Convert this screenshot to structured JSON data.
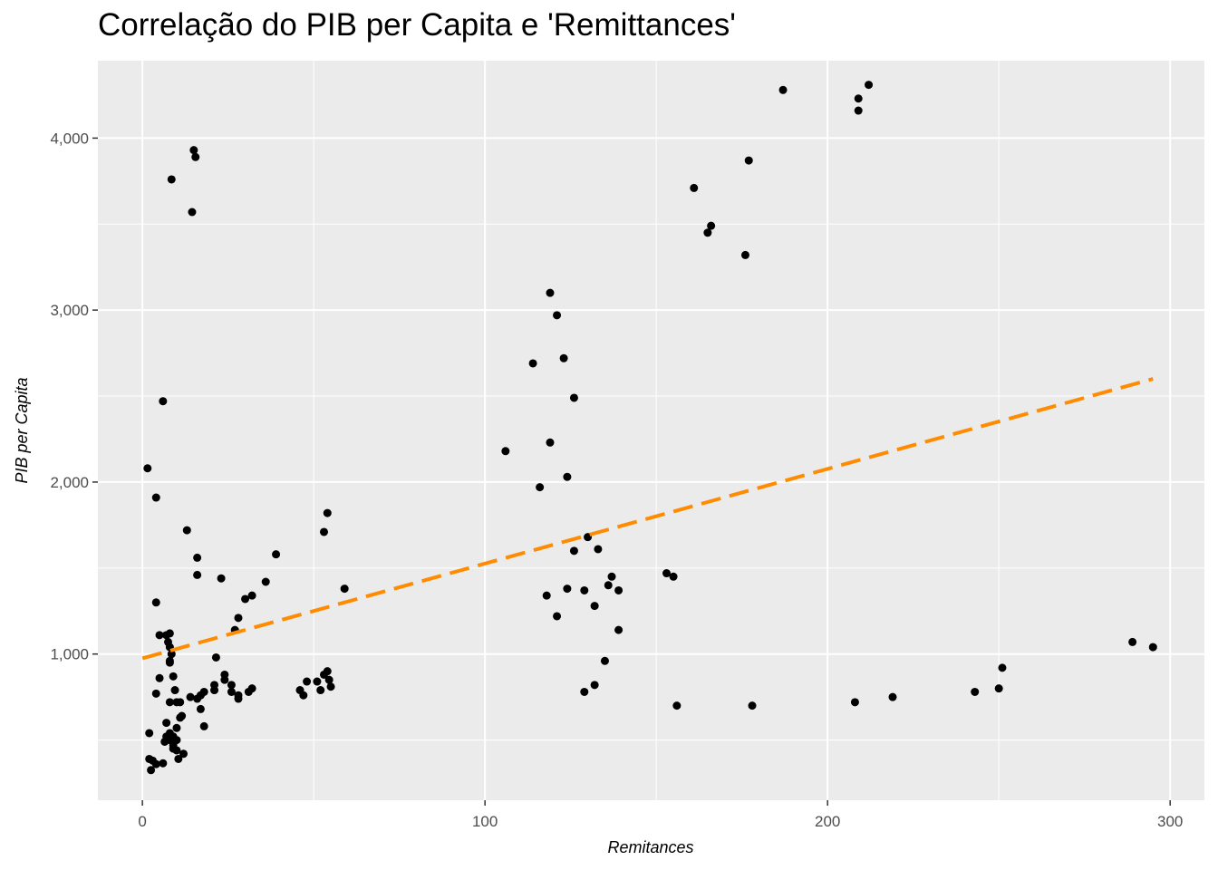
{
  "chart_data": {
    "type": "scatter",
    "title": "Correlação do PIB per Capita e 'Remittances'",
    "xlabel": "Remitances",
    "ylabel": "PIB per Capita",
    "xlim": [
      -13,
      310
    ],
    "ylim": [
      150,
      4450
    ],
    "x_ticks": [
      0,
      100,
      200,
      300
    ],
    "x_tick_labels": [
      "0",
      "100",
      "200",
      "300"
    ],
    "y_ticks": [
      1000,
      2000,
      3000,
      4000
    ],
    "y_tick_labels": [
      "1,000",
      "2,000",
      "3,000",
      "4,000"
    ],
    "grid": true,
    "legend": "none",
    "colors": {
      "panel": "#ebebeb",
      "grid": "#ffffff",
      "points": "#000000",
      "trend": "#ff8c00"
    },
    "trend_line": {
      "style": "dashed",
      "x": [
        0,
        295
      ],
      "y": [
        975,
        2600
      ]
    },
    "points": [
      [
        1.5,
        2080
      ],
      [
        4,
        1910
      ],
      [
        6,
        2470
      ],
      [
        13,
        1720
      ],
      [
        16,
        1560
      ],
      [
        16,
        1460
      ],
      [
        2,
        540
      ],
      [
        2,
        390
      ],
      [
        2.5,
        325
      ],
      [
        3,
        380
      ],
      [
        4,
        360
      ],
      [
        4,
        770
      ],
      [
        4,
        1300
      ],
      [
        5,
        860
      ],
      [
        5,
        1110
      ],
      [
        6,
        365
      ],
      [
        6.5,
        490
      ],
      [
        7,
        600
      ],
      [
        7,
        520
      ],
      [
        7,
        1110
      ],
      [
        7.5,
        1070
      ],
      [
        8,
        1120
      ],
      [
        8,
        1040
      ],
      [
        8,
        960
      ],
      [
        8,
        950
      ],
      [
        8,
        720
      ],
      [
        8,
        500
      ],
      [
        8,
        540
      ],
      [
        8.5,
        1000
      ],
      [
        9,
        870
      ],
      [
        9,
        470
      ],
      [
        9,
        450
      ],
      [
        9,
        520
      ],
      [
        9.5,
        790
      ],
      [
        10,
        720
      ],
      [
        10,
        570
      ],
      [
        10,
        500
      ],
      [
        10,
        440
      ],
      [
        10.5,
        390
      ],
      [
        11,
        630
      ],
      [
        11,
        720
      ],
      [
        11.5,
        640
      ],
      [
        12,
        420
      ],
      [
        8.5,
        3760
      ],
      [
        15,
        3930
      ],
      [
        15.5,
        3890
      ],
      [
        14.5,
        3570
      ],
      [
        14,
        750
      ],
      [
        16,
        740
      ],
      [
        17,
        680
      ],
      [
        17,
        760
      ],
      [
        18,
        580
      ],
      [
        18,
        780
      ],
      [
        21,
        820
      ],
      [
        21,
        790
      ],
      [
        21.5,
        980
      ],
      [
        23,
        1440
      ],
      [
        24,
        880
      ],
      [
        24,
        850
      ],
      [
        26,
        780
      ],
      [
        26,
        820
      ],
      [
        27,
        1140
      ],
      [
        28,
        1210
      ],
      [
        28,
        740
      ],
      [
        28,
        760
      ],
      [
        30,
        1320
      ],
      [
        31,
        780
      ],
      [
        32,
        800
      ],
      [
        32,
        1340
      ],
      [
        36,
        1420
      ],
      [
        39,
        1580
      ],
      [
        46,
        790
      ],
      [
        47,
        760
      ],
      [
        48,
        840
      ],
      [
        51,
        840
      ],
      [
        52,
        790
      ],
      [
        53,
        880
      ],
      [
        53,
        1710
      ],
      [
        54,
        900
      ],
      [
        54,
        1820
      ],
      [
        54.5,
        850
      ],
      [
        55,
        810
      ],
      [
        59,
        1380
      ],
      [
        106,
        2180
      ],
      [
        114,
        2690
      ],
      [
        116,
        1970
      ],
      [
        118,
        1340
      ],
      [
        119,
        2230
      ],
      [
        119,
        3100
      ],
      [
        121,
        2970
      ],
      [
        121,
        1220
      ],
      [
        123,
        2720
      ],
      [
        124,
        2030
      ],
      [
        124,
        1380
      ],
      [
        126,
        2490
      ],
      [
        126,
        1600
      ],
      [
        129,
        1370
      ],
      [
        129,
        780
      ],
      [
        130,
        1680
      ],
      [
        132,
        820
      ],
      [
        132,
        1280
      ],
      [
        133,
        1610
      ],
      [
        135,
        960
      ],
      [
        136,
        1400
      ],
      [
        137,
        1450
      ],
      [
        139,
        1140
      ],
      [
        139,
        1370
      ],
      [
        153,
        1470
      ],
      [
        155,
        1450
      ],
      [
        156,
        700
      ],
      [
        161,
        3710
      ],
      [
        165,
        3450
      ],
      [
        166,
        3490
      ],
      [
        176,
        3320
      ],
      [
        177,
        3870
      ],
      [
        178,
        700
      ],
      [
        187,
        4280
      ],
      [
        208,
        720
      ],
      [
        209,
        4160
      ],
      [
        209,
        4230
      ],
      [
        212,
        4310
      ],
      [
        219,
        750
      ],
      [
        243,
        780
      ],
      [
        250,
        800
      ],
      [
        251,
        920
      ],
      [
        289,
        1070
      ],
      [
        295,
        1040
      ]
    ]
  }
}
